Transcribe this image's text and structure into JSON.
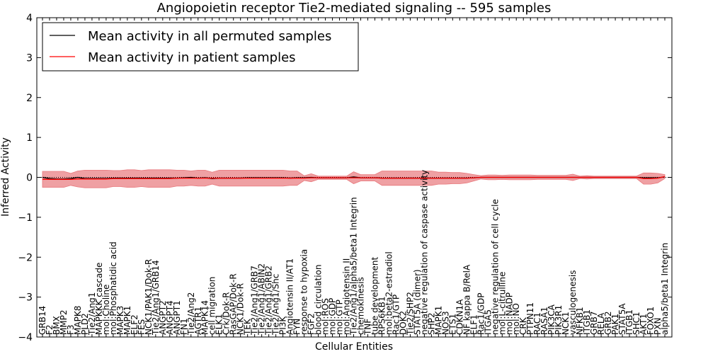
{
  "chart_data": {
    "type": "line",
    "title": "Angiopoietin receptor Tie2-mediated signaling -- 595 samples",
    "xlabel": "Cellular Entities",
    "ylabel": "Inferred Activity",
    "ylim": [
      -4,
      4
    ],
    "yticks": [
      -4,
      -3,
      -2,
      -1,
      0,
      1,
      2,
      3,
      4
    ],
    "ytick_labels": [
      "−4",
      "−3",
      "−2",
      "−1",
      "0",
      "1",
      "2",
      "3",
      "4"
    ],
    "legend_placement": "top-left",
    "categories": [
      "GRB14",
      "F2",
      "BMX",
      "MMP2",
      "F3",
      "MAPK8",
      "PLD2",
      "Tie2/Ang1",
      "MAPKKK cascade",
      "mol:Choline",
      "mol:Phosphatidic acid",
      "MAPK3",
      "MAPK1",
      "ELF2",
      "FES",
      "NCK1/PAK1/Dok-R",
      "Tie2/Ang1/GRB14",
      "ANGPT2",
      "ANGPT4",
      "ANGPT1",
      "FN1",
      "Tie2/Ang2",
      "AGTR1",
      "MAPK14",
      "cell migration",
      "ELK1",
      "Crk/Dok-R",
      "RasGAP/Dok-R",
      "NCK1/Dok-R",
      "TEK",
      "Tie2/Ang1/GRB7",
      "Tie2/Ang1/ABIN2",
      "Tie2/Ang1/GRB2",
      "Tie2/Ang1/Shc",
      "PI3K",
      "Angiotensin II/AT1",
      "FYN",
      "response to hypoxia",
      "FGF2",
      "blood circulation",
      "mol:ROS",
      "mol:GDP",
      "mol:GTP",
      "mol:Angiotensin II",
      "Tie2/Ang1/alpha5/beta1 Integrin",
      "chemokinesis",
      "TNF",
      "tube development",
      "RPS6KB1",
      "mol:beta2-estradiol",
      "Rac1/GTP",
      "DOK2",
      "Tie2/SHP2",
      "STAT5A (dimer)",
      "negative regulation of caspase activity",
      "SHP2",
      "MAPK1",
      "NOS3",
      "ETS1",
      "CDKN1A",
      "NF kappa B/RelA",
      "ELF1",
      "Rac1/GDP",
      "ITGA5",
      "negative regulation of cell cycle",
      "mol:L-citrulline",
      "mol:NADP",
      "mol:NO",
      "CRK",
      "PTPN11",
      "RAC1",
      "RASA1",
      "PIK3CA",
      "PIK3R1",
      "NCK1",
      "vasculogenesis",
      "NFKB1",
      "ITGB1",
      "GRB7",
      "RELA",
      "GRB2",
      "PAK1",
      "STAT5A",
      "ITGB1",
      "SHC1",
      "AKT1",
      "FOXO1",
      "PXN",
      "alpha5/beta1 Integrin"
    ],
    "series": [
      {
        "name": "Mean activity in all permuted samples",
        "color": "#000000",
        "values": [
          0.0,
          -0.03,
          -0.04,
          -0.04,
          -0.03,
          0.0,
          -0.03,
          -0.03,
          -0.03,
          -0.03,
          -0.02,
          -0.02,
          -0.02,
          -0.02,
          -0.02,
          -0.02,
          -0.02,
          -0.02,
          -0.02,
          -0.02,
          -0.01,
          0.0,
          -0.02,
          -0.01,
          -0.03,
          -0.02,
          -0.02,
          -0.02,
          -0.02,
          -0.01,
          -0.01,
          -0.01,
          -0.01,
          -0.01,
          -0.01,
          -0.02,
          -0.01,
          -0.01,
          0.0,
          -0.01,
          -0.01,
          -0.01,
          -0.01,
          -0.01,
          0.01,
          -0.01,
          -0.01,
          -0.01,
          -0.02,
          -0.02,
          -0.02,
          -0.02,
          -0.02,
          -0.02,
          -0.02,
          -0.02,
          -0.02,
          -0.02,
          -0.02,
          -0.02,
          -0.02,
          -0.01,
          0.0,
          0.0,
          0.0,
          0.0,
          0.0,
          0.0,
          0.0,
          0.0,
          0.0,
          0.0,
          0.0,
          0.0,
          0.0,
          0.0,
          0.0,
          0.0,
          0.0,
          0.0,
          0.0,
          0.0,
          0.0,
          0.0,
          0.0,
          -0.01,
          -0.01,
          -0.01,
          0.01
        ]
      },
      {
        "name": "Mean activity in patient samples",
        "color": "#ff0000",
        "band_color": "#e8787c",
        "values": [
          -0.05,
          -0.05,
          -0.05,
          -0.05,
          -0.05,
          -0.04,
          -0.04,
          -0.04,
          -0.04,
          -0.04,
          -0.03,
          -0.03,
          -0.03,
          -0.03,
          -0.03,
          -0.03,
          -0.03,
          -0.03,
          -0.03,
          -0.02,
          -0.02,
          -0.02,
          -0.02,
          -0.02,
          -0.02,
          -0.02,
          -0.02,
          -0.02,
          -0.02,
          -0.02,
          -0.02,
          -0.02,
          -0.02,
          -0.02,
          -0.02,
          -0.02,
          -0.02,
          -0.02,
          -0.01,
          -0.01,
          -0.01,
          -0.01,
          -0.01,
          -0.01,
          -0.01,
          -0.01,
          -0.01,
          -0.01,
          -0.02,
          -0.02,
          -0.02,
          -0.02,
          -0.02,
          -0.02,
          -0.02,
          -0.02,
          -0.02,
          -0.02,
          -0.02,
          -0.02,
          -0.02,
          -0.01,
          0.0,
          0.0,
          0.0,
          0.0,
          0.0,
          0.0,
          0.0,
          0.0,
          0.0,
          0.0,
          0.0,
          0.0,
          0.0,
          0.0,
          0.0,
          0.0,
          0.0,
          0.0,
          0.0,
          0.0,
          0.0,
          0.0,
          0.0,
          -0.03,
          -0.03,
          -0.02,
          0.02
        ],
        "band_half_width": [
          0.2,
          0.2,
          0.2,
          0.2,
          0.15,
          0.2,
          0.22,
          0.22,
          0.22,
          0.22,
          0.2,
          0.2,
          0.22,
          0.22,
          0.2,
          0.22,
          0.22,
          0.22,
          0.22,
          0.2,
          0.2,
          0.18,
          0.2,
          0.2,
          0.15,
          0.2,
          0.2,
          0.2,
          0.2,
          0.2,
          0.2,
          0.2,
          0.2,
          0.2,
          0.2,
          0.18,
          0.18,
          0.06,
          0.1,
          0.04,
          0.04,
          0.04,
          0.04,
          0.04,
          0.15,
          0.08,
          0.08,
          0.08,
          0.18,
          0.18,
          0.18,
          0.18,
          0.18,
          0.18,
          0.18,
          0.18,
          0.15,
          0.15,
          0.14,
          0.14,
          0.12,
          0.08,
          0.04,
          0.06,
          0.06,
          0.05,
          0.06,
          0.06,
          0.06,
          0.06,
          0.05,
          0.05,
          0.05,
          0.05,
          0.05,
          0.08,
          0.03,
          0.04,
          0.03,
          0.03,
          0.03,
          0.03,
          0.03,
          0.03,
          0.03,
          0.14,
          0.14,
          0.12,
          0.05
        ]
      }
    ]
  }
}
